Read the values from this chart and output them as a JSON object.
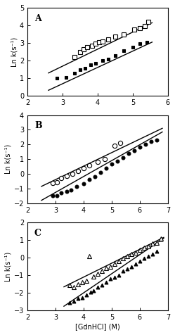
{
  "panel_A": {
    "label": "A",
    "xlim": [
      2,
      6
    ],
    "ylim": [
      0,
      5
    ],
    "yticks": [
      0,
      1,
      2,
      3,
      4,
      5
    ],
    "xticks": [
      2,
      3,
      4,
      5,
      6
    ],
    "solid_squares": [
      [
        2.85,
        1.0
      ],
      [
        3.1,
        1.05
      ],
      [
        3.35,
        1.3
      ],
      [
        3.5,
        1.5
      ],
      [
        3.65,
        1.55
      ],
      [
        3.8,
        1.75
      ],
      [
        3.95,
        1.85
      ],
      [
        4.15,
        2.0
      ],
      [
        4.3,
        2.1
      ],
      [
        4.5,
        2.3
      ],
      [
        4.75,
        2.55
      ],
      [
        5.0,
        2.75
      ],
      [
        5.2,
        2.95
      ],
      [
        5.4,
        3.05
      ]
    ],
    "open_squares": [
      [
        3.35,
        2.2
      ],
      [
        3.5,
        2.5
      ],
      [
        3.6,
        2.65
      ],
      [
        3.7,
        2.75
      ],
      [
        3.85,
        2.85
      ],
      [
        3.95,
        2.95
      ],
      [
        4.05,
        3.05
      ],
      [
        4.15,
        3.1
      ],
      [
        4.3,
        3.2
      ],
      [
        4.5,
        3.35
      ],
      [
        4.75,
        3.5
      ],
      [
        5.05,
        3.75
      ],
      [
        5.2,
        3.85
      ],
      [
        5.35,
        3.95
      ],
      [
        5.45,
        4.2
      ]
    ],
    "line_solid": {
      "x0": 2.6,
      "x1": 5.55,
      "y0": 0.32,
      "y1": 3.05
    },
    "line_open": {
      "x0": 2.6,
      "x1": 5.55,
      "y0": 1.3,
      "y1": 4.15
    }
  },
  "panel_B": {
    "label": "B",
    "xlim": [
      2,
      7
    ],
    "ylim": [
      -2,
      4
    ],
    "yticks": [
      -2,
      -1,
      0,
      1,
      2,
      3,
      4
    ],
    "xticks": [
      2,
      3,
      4,
      5,
      6,
      7
    ],
    "solid_circles": [
      [
        2.9,
        -1.5
      ],
      [
        3.05,
        -1.5
      ],
      [
        3.2,
        -1.3
      ],
      [
        3.4,
        -1.2
      ],
      [
        3.55,
        -1.1
      ],
      [
        3.75,
        -0.85
      ],
      [
        4.0,
        -0.65
      ],
      [
        4.2,
        -0.4
      ],
      [
        4.4,
        -0.2
      ],
      [
        4.6,
        0.1
      ],
      [
        4.8,
        0.4
      ],
      [
        5.0,
        0.65
      ],
      [
        5.2,
        0.85
      ],
      [
        5.4,
        1.1
      ],
      [
        5.6,
        1.4
      ],
      [
        5.8,
        1.6
      ],
      [
        6.0,
        1.8
      ],
      [
        6.2,
        2.0
      ],
      [
        6.4,
        2.2
      ],
      [
        6.6,
        2.3
      ]
    ],
    "open_circles": [
      [
        2.9,
        -0.6
      ],
      [
        3.05,
        -0.55
      ],
      [
        3.2,
        -0.3
      ],
      [
        3.4,
        -0.15
      ],
      [
        3.6,
        0.0
      ],
      [
        3.8,
        0.2
      ],
      [
        4.0,
        0.4
      ],
      [
        4.2,
        0.6
      ],
      [
        4.5,
        0.8
      ],
      [
        4.75,
        1.0
      ],
      [
        5.1,
        1.9
      ],
      [
        5.3,
        2.1
      ]
    ],
    "line_solid": {
      "x0": 2.5,
      "x1": 6.8,
      "y0": -1.8,
      "y1": 2.85
    },
    "line_open": {
      "x0": 2.5,
      "x1": 6.8,
      "y0": -0.85,
      "y1": 3.1
    }
  },
  "panel_C": {
    "label": "C",
    "xlim": [
      2,
      7
    ],
    "ylim": [
      -3,
      2
    ],
    "yticks": [
      -3,
      -2,
      -1,
      0,
      1,
      2
    ],
    "xticks": [
      2,
      3,
      4,
      5,
      6,
      7
    ],
    "solid_triangles": [
      [
        3.5,
        -2.55
      ],
      [
        3.65,
        -2.45
      ],
      [
        3.8,
        -2.3
      ],
      [
        3.95,
        -2.25
      ],
      [
        4.1,
        -2.1
      ],
      [
        4.25,
        -1.95
      ],
      [
        4.35,
        -1.85
      ],
      [
        4.5,
        -1.65
      ],
      [
        4.65,
        -1.55
      ],
      [
        4.8,
        -1.4
      ],
      [
        4.95,
        -1.2
      ],
      [
        5.1,
        -1.1
      ],
      [
        5.25,
        -1.0
      ],
      [
        5.4,
        -0.75
      ],
      [
        5.55,
        -0.65
      ],
      [
        5.7,
        -0.5
      ],
      [
        5.85,
        -0.35
      ],
      [
        6.0,
        -0.2
      ],
      [
        6.15,
        -0.05
      ],
      [
        6.3,
        0.1
      ],
      [
        6.45,
        0.2
      ],
      [
        6.6,
        0.35
      ],
      [
        6.75,
        1.05
      ]
    ],
    "open_triangles": [
      [
        3.5,
        -1.55
      ],
      [
        3.65,
        -1.65
      ],
      [
        3.8,
        -1.5
      ],
      [
        3.95,
        -1.4
      ],
      [
        4.1,
        -1.3
      ],
      [
        4.2,
        0.1
      ],
      [
        4.35,
        -1.05
      ],
      [
        4.5,
        -0.9
      ],
      [
        4.65,
        -0.75
      ],
      [
        4.8,
        -0.6
      ],
      [
        4.95,
        -0.5
      ],
      [
        5.1,
        -0.35
      ],
      [
        5.25,
        -0.2
      ],
      [
        5.4,
        -0.05
      ],
      [
        5.55,
        0.1
      ],
      [
        5.7,
        0.2
      ],
      [
        5.85,
        0.3
      ],
      [
        6.0,
        0.45
      ],
      [
        6.15,
        0.55
      ],
      [
        6.3,
        0.65
      ],
      [
        6.45,
        0.8
      ],
      [
        6.6,
        0.85
      ],
      [
        6.75,
        1.1
      ]
    ],
    "line_solid": {
      "x0": 3.3,
      "x1": 6.85,
      "y0": -2.75,
      "y1": 1.1
    },
    "line_open": {
      "x0": 3.3,
      "x1": 6.85,
      "y0": -1.65,
      "y1": 1.15
    }
  },
  "xlabel": "[GdnHCl] (M)",
  "ylabel": "Ln k(s⁻¹)",
  "background_color": "#ffffff",
  "line_color": "black"
}
